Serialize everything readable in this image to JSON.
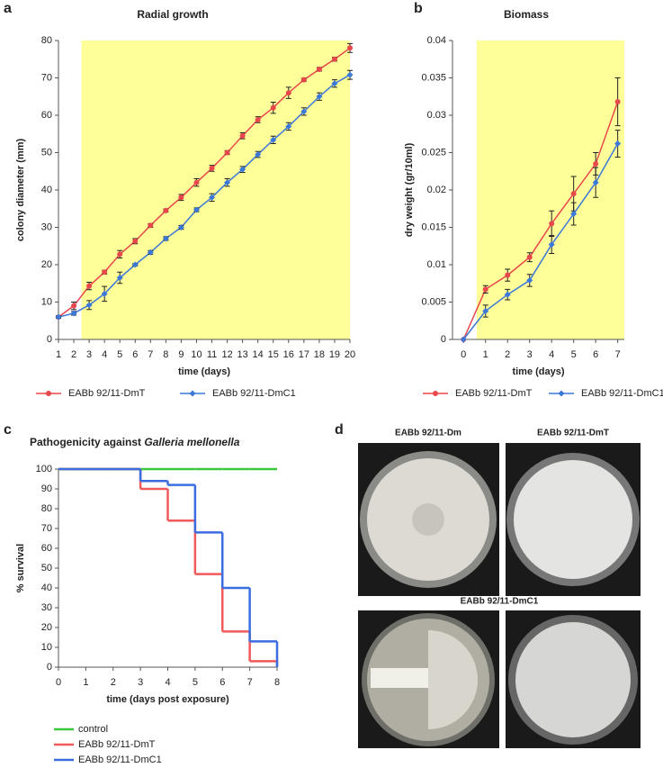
{
  "chart_data": [
    {
      "type": "line",
      "panel_label": "a",
      "title": "Radial growth",
      "xlabel": "time (days)",
      "ylabel": "colony diameter (mm)",
      "x": [
        1,
        2,
        3,
        4,
        5,
        6,
        7,
        8,
        9,
        10,
        11,
        12,
        13,
        14,
        15,
        16,
        17,
        18,
        19,
        20
      ],
      "xlim": [
        1,
        20
      ],
      "xticks": [
        1,
        2,
        3,
        4,
        5,
        6,
        7,
        8,
        9,
        10,
        11,
        12,
        13,
        14,
        15,
        16,
        17,
        18,
        19,
        20
      ],
      "ylim": [
        0,
        80
      ],
      "yticks": [
        0,
        10,
        20,
        30,
        40,
        50,
        60,
        70,
        80
      ],
      "highlight": {
        "x": [
          2.5,
          20
        ],
        "color": "#ffff99"
      },
      "series": [
        {
          "name": "EABb 92/11-DmT",
          "color": "#e8474c",
          "marker": "circle",
          "values": [
            6,
            9,
            14.3,
            18,
            22.8,
            26.3,
            30.5,
            34.5,
            38,
            42,
            45.8,
            50,
            54.5,
            58.8,
            62,
            66,
            69.5,
            72.3,
            75,
            78
          ],
          "errors": [
            0.3,
            1,
            1,
            0.5,
            1,
            0.7,
            0.5,
            0.4,
            0.8,
            1,
            0.8,
            0.5,
            0.8,
            0.8,
            1.5,
            1.5,
            0.4,
            0.5,
            0.5,
            1.2
          ]
        },
        {
          "name": "EABb 92/11-DmC1",
          "color": "#3c78d8",
          "marker": "diamond",
          "values": [
            6,
            7,
            9.2,
            12.2,
            16.5,
            20,
            23.3,
            27,
            30,
            34.7,
            38,
            42,
            45.5,
            49.5,
            53.4,
            57,
            61,
            65,
            68.5,
            70.8
          ],
          "errors": [
            0.3,
            0.5,
            1.2,
            2,
            1.5,
            0.3,
            0.5,
            0.5,
            0.5,
            0.5,
            1,
            1,
            0.8,
            0.8,
            1,
            1,
            1,
            1,
            1,
            1.2
          ]
        }
      ]
    },
    {
      "type": "line",
      "panel_label": "b",
      "title": "Biomass",
      "xlabel": "time (days)",
      "ylabel": "dry weight (gr/10ml)",
      "x": [
        0,
        1,
        2,
        3,
        4,
        5,
        6,
        7
      ],
      "xlim": [
        -0.5,
        7.3
      ],
      "xticks": [
        0,
        1,
        2,
        3,
        4,
        5,
        6,
        7
      ],
      "ylim": [
        0,
        0.04
      ],
      "yticks": [
        0,
        0.005,
        0.01,
        0.015,
        0.02,
        0.025,
        0.03,
        0.035,
        0.04
      ],
      "highlight": {
        "x": [
          0.6,
          7.3
        ],
        "color": "#ffff99"
      },
      "series": [
        {
          "name": "EABb 92/11-DmT",
          "color": "#e8474c",
          "marker": "circle",
          "values": [
            0,
            0.0067,
            0.0086,
            0.011,
            0.0155,
            0.0195,
            0.0235,
            0.0318
          ],
          "errors": [
            0,
            0.0005,
            0.0008,
            0.0006,
            0.0017,
            0.0023,
            0.0015,
            0.0032
          ]
        },
        {
          "name": "EABb 92/11-DmC1",
          "color": "#3c78d8",
          "marker": "diamond",
          "values": [
            0,
            0.0038,
            0.006,
            0.0079,
            0.0127,
            0.0168,
            0.021,
            0.0262
          ],
          "errors": [
            0,
            0.0008,
            0.0007,
            0.0008,
            0.0012,
            0.0015,
            0.002,
            0.0018
          ]
        }
      ]
    },
    {
      "type": "step",
      "panel_label": "c",
      "title": "Pathogenicity against ",
      "title_italic": "Galleria mellonella",
      "xlabel": "time (days post exposure)",
      "ylabel": "% survival",
      "x": [
        0,
        1,
        2,
        3,
        4,
        5,
        6,
        7,
        8
      ],
      "xlim": [
        0,
        8
      ],
      "xticks": [
        0,
        1,
        2,
        3,
        4,
        5,
        6,
        7,
        8
      ],
      "ylim": [
        0,
        100
      ],
      "yticks": [
        0,
        10,
        20,
        30,
        40,
        50,
        60,
        70,
        80,
        90,
        100
      ],
      "series": [
        {
          "name": "control",
          "color": "#3cc83c",
          "values": [
            100,
            100,
            100,
            100,
            100,
            100,
            100,
            100,
            100
          ]
        },
        {
          "name": "EABb 92/11-DmT",
          "color": "#f05a5a",
          "values": [
            100,
            100,
            100,
            90,
            74,
            47,
            18,
            3,
            0
          ]
        },
        {
          "name": "EABb 92/11-DmC1",
          "color": "#3a6ee0",
          "values": [
            100,
            100,
            100,
            94,
            92,
            68,
            40,
            13,
            0
          ]
        }
      ]
    }
  ],
  "photo_panel": {
    "label": "d",
    "titles": [
      "EABb 92/11-Dm",
      "EABb 92/11-DmT",
      "EABb 92/11-DmC1"
    ]
  }
}
